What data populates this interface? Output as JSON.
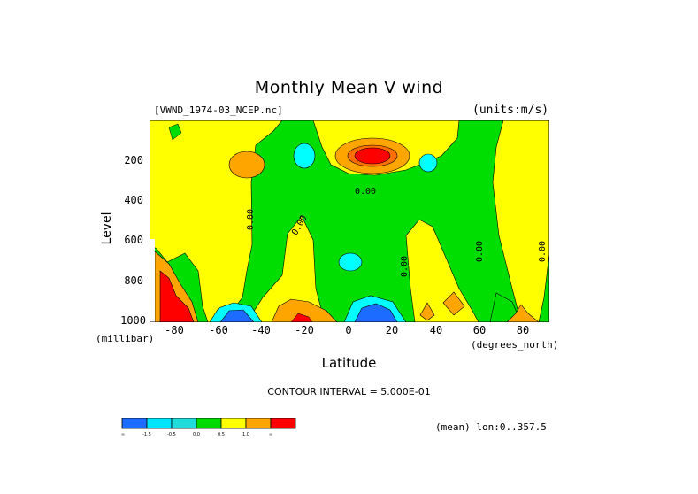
{
  "chart_data": {
    "type": "heatmap",
    "title": "Monthly Mean V wind",
    "dataset": "[VWND_1974-03_NCEP.nc]",
    "units": "(units:m/s)",
    "xlabel": "Latitude",
    "x_unit": "(degrees_north)",
    "ylabel": "Level",
    "y_unit": "(millibar)",
    "x_ticks": [
      "-80",
      "-60",
      "-40",
      "-20",
      "0",
      "20",
      "40",
      "60",
      "80"
    ],
    "y_ticks": [
      "200",
      "400",
      "600",
      "800",
      "1000"
    ],
    "xlim": [
      -90,
      90
    ],
    "ylim": [
      1000,
      10
    ],
    "y_reversed": true,
    "contour_interval": "CONTOUR INTERVAL = 5.000E-01",
    "contour_labels": [
      "0.00",
      "0.00",
      "0.00",
      "0.00",
      "0.00",
      "0.00"
    ],
    "subtitle_right": "(mean) lon:0..357.5",
    "colorbar": {
      "labels": [
        "-∞",
        "-1.5",
        "-0.5",
        "0.0",
        "0.5",
        "1.0",
        "∞"
      ],
      "colors": [
        "#1c6cff",
        "#00e5ff",
        "#22dcdc",
        "#00d800",
        "#ffff00",
        "#ffa500",
        "#ff0000"
      ]
    },
    "palette": {
      "lt_-1.5": "#1c6cff",
      "-1.5_to_-1.0": "#00d0ff",
      "-1.0_to_-0.5": "#00ffff",
      "-0.5_to_0.0": "#00dd00",
      "0.0_to_0.5": "#ffff00",
      "0.5_to_1.0": "#ffa500",
      "1.0_to_1.5": "#ff7000",
      "gt_1.5": "#ff0000"
    }
  }
}
